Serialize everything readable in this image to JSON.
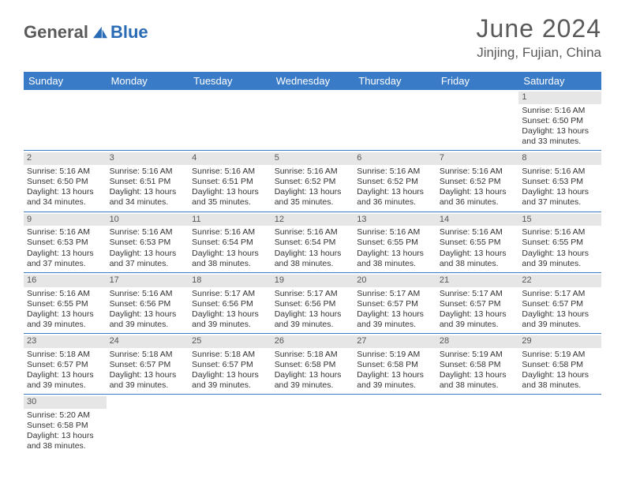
{
  "brand": {
    "part1": "General",
    "part2": "Blue"
  },
  "header": {
    "month": "June 2024",
    "location": "Jinjing, Fujian, China"
  },
  "colors": {
    "header_bar": "#3a7bc8",
    "day_number_bg": "#e6e6e6",
    "brand_gray": "#5a5a5a",
    "brand_blue": "#2a6bb5",
    "row_border": "#3a7bc8"
  },
  "weekdays": [
    "Sunday",
    "Monday",
    "Tuesday",
    "Wednesday",
    "Thursday",
    "Friday",
    "Saturday"
  ],
  "weeks": [
    [
      null,
      null,
      null,
      null,
      null,
      null,
      {
        "n": "1",
        "sr": "5:16 AM",
        "ss": "6:50 PM",
        "dl": "13 hours and 33 minutes."
      }
    ],
    [
      {
        "n": "2",
        "sr": "5:16 AM",
        "ss": "6:50 PM",
        "dl": "13 hours and 34 minutes."
      },
      {
        "n": "3",
        "sr": "5:16 AM",
        "ss": "6:51 PM",
        "dl": "13 hours and 34 minutes."
      },
      {
        "n": "4",
        "sr": "5:16 AM",
        "ss": "6:51 PM",
        "dl": "13 hours and 35 minutes."
      },
      {
        "n": "5",
        "sr": "5:16 AM",
        "ss": "6:52 PM",
        "dl": "13 hours and 35 minutes."
      },
      {
        "n": "6",
        "sr": "5:16 AM",
        "ss": "6:52 PM",
        "dl": "13 hours and 36 minutes."
      },
      {
        "n": "7",
        "sr": "5:16 AM",
        "ss": "6:52 PM",
        "dl": "13 hours and 36 minutes."
      },
      {
        "n": "8",
        "sr": "5:16 AM",
        "ss": "6:53 PM",
        "dl": "13 hours and 37 minutes."
      }
    ],
    [
      {
        "n": "9",
        "sr": "5:16 AM",
        "ss": "6:53 PM",
        "dl": "13 hours and 37 minutes."
      },
      {
        "n": "10",
        "sr": "5:16 AM",
        "ss": "6:53 PM",
        "dl": "13 hours and 37 minutes."
      },
      {
        "n": "11",
        "sr": "5:16 AM",
        "ss": "6:54 PM",
        "dl": "13 hours and 38 minutes."
      },
      {
        "n": "12",
        "sr": "5:16 AM",
        "ss": "6:54 PM",
        "dl": "13 hours and 38 minutes."
      },
      {
        "n": "13",
        "sr": "5:16 AM",
        "ss": "6:55 PM",
        "dl": "13 hours and 38 minutes."
      },
      {
        "n": "14",
        "sr": "5:16 AM",
        "ss": "6:55 PM",
        "dl": "13 hours and 38 minutes."
      },
      {
        "n": "15",
        "sr": "5:16 AM",
        "ss": "6:55 PM",
        "dl": "13 hours and 39 minutes."
      }
    ],
    [
      {
        "n": "16",
        "sr": "5:16 AM",
        "ss": "6:55 PM",
        "dl": "13 hours and 39 minutes."
      },
      {
        "n": "17",
        "sr": "5:16 AM",
        "ss": "6:56 PM",
        "dl": "13 hours and 39 minutes."
      },
      {
        "n": "18",
        "sr": "5:17 AM",
        "ss": "6:56 PM",
        "dl": "13 hours and 39 minutes."
      },
      {
        "n": "19",
        "sr": "5:17 AM",
        "ss": "6:56 PM",
        "dl": "13 hours and 39 minutes."
      },
      {
        "n": "20",
        "sr": "5:17 AM",
        "ss": "6:57 PM",
        "dl": "13 hours and 39 minutes."
      },
      {
        "n": "21",
        "sr": "5:17 AM",
        "ss": "6:57 PM",
        "dl": "13 hours and 39 minutes."
      },
      {
        "n": "22",
        "sr": "5:17 AM",
        "ss": "6:57 PM",
        "dl": "13 hours and 39 minutes."
      }
    ],
    [
      {
        "n": "23",
        "sr": "5:18 AM",
        "ss": "6:57 PM",
        "dl": "13 hours and 39 minutes."
      },
      {
        "n": "24",
        "sr": "5:18 AM",
        "ss": "6:57 PM",
        "dl": "13 hours and 39 minutes."
      },
      {
        "n": "25",
        "sr": "5:18 AM",
        "ss": "6:57 PM",
        "dl": "13 hours and 39 minutes."
      },
      {
        "n": "26",
        "sr": "5:18 AM",
        "ss": "6:58 PM",
        "dl": "13 hours and 39 minutes."
      },
      {
        "n": "27",
        "sr": "5:19 AM",
        "ss": "6:58 PM",
        "dl": "13 hours and 39 minutes."
      },
      {
        "n": "28",
        "sr": "5:19 AM",
        "ss": "6:58 PM",
        "dl": "13 hours and 38 minutes."
      },
      {
        "n": "29",
        "sr": "5:19 AM",
        "ss": "6:58 PM",
        "dl": "13 hours and 38 minutes."
      }
    ],
    [
      {
        "n": "30",
        "sr": "5:20 AM",
        "ss": "6:58 PM",
        "dl": "13 hours and 38 minutes."
      },
      null,
      null,
      null,
      null,
      null,
      null
    ]
  ],
  "labels": {
    "sunrise": "Sunrise:",
    "sunset": "Sunset:",
    "daylight": "Daylight:"
  }
}
